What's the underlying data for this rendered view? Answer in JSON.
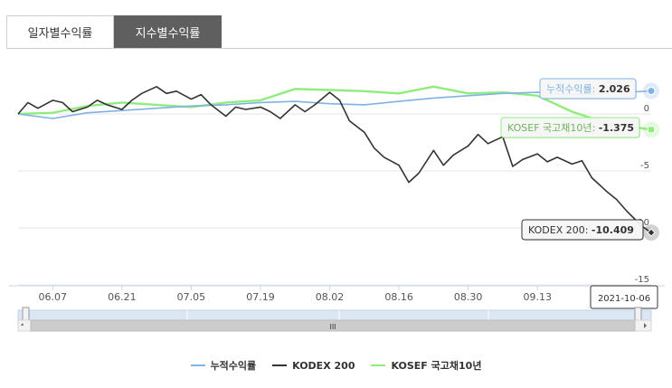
{
  "tabs": [
    {
      "label": "일자별수익률",
      "active": false
    },
    {
      "label": "지수별수익률",
      "active": true
    }
  ],
  "colors": {
    "series_cumulative": "#7fb2e5",
    "series_kodex": "#333333",
    "series_kosef": "#90ed7d",
    "grid": "#e6e6e6",
    "navigator_fill": "#dbe7f5"
  },
  "chart_data": {
    "type": "line",
    "xlabel": "",
    "ylabel": "",
    "ylim": [
      -15,
      0
    ],
    "y_ticks": [
      "0",
      "-5",
      "-10",
      "-15"
    ],
    "x_ticks": [
      "06.07",
      "06.21",
      "07.05",
      "07.19",
      "08.02",
      "08.16",
      "08.30",
      "09.13"
    ],
    "x_range": [
      "2021-05-31",
      "2021-10-06"
    ],
    "series": [
      {
        "name": "누적수익률",
        "x": [
          "2021-05-31",
          "2021-06-07",
          "2021-06-14",
          "2021-06-21",
          "2021-06-28",
          "2021-07-05",
          "2021-07-12",
          "2021-07-19",
          "2021-07-26",
          "2021-08-02",
          "2021-08-09",
          "2021-08-16",
          "2021-08-23",
          "2021-08-30",
          "2021-09-06",
          "2021-09-13",
          "2021-09-20",
          "2021-09-27",
          "2021-10-06"
        ],
        "values": [
          0.0,
          -0.4,
          0.1,
          0.3,
          0.5,
          0.7,
          0.8,
          1.0,
          1.1,
          0.9,
          0.8,
          1.1,
          1.4,
          1.6,
          1.8,
          1.9,
          1.7,
          1.8,
          2.026
        ]
      },
      {
        "name": "KODEX 200",
        "x": [
          "2021-05-31",
          "2021-06-02",
          "2021-06-04",
          "2021-06-07",
          "2021-06-09",
          "2021-06-11",
          "2021-06-14",
          "2021-06-16",
          "2021-06-18",
          "2021-06-21",
          "2021-06-23",
          "2021-06-25",
          "2021-06-28",
          "2021-06-30",
          "2021-07-02",
          "2021-07-05",
          "2021-07-07",
          "2021-07-09",
          "2021-07-12",
          "2021-07-14",
          "2021-07-16",
          "2021-07-19",
          "2021-07-21",
          "2021-07-23",
          "2021-07-26",
          "2021-07-28",
          "2021-07-30",
          "2021-08-02",
          "2021-08-04",
          "2021-08-06",
          "2021-08-09",
          "2021-08-11",
          "2021-08-13",
          "2021-08-16",
          "2021-08-18",
          "2021-08-20",
          "2021-08-23",
          "2021-08-25",
          "2021-08-27",
          "2021-08-30",
          "2021-09-01",
          "2021-09-03",
          "2021-09-06",
          "2021-09-08",
          "2021-09-10",
          "2021-09-13",
          "2021-09-15",
          "2021-09-17",
          "2021-09-20",
          "2021-09-22",
          "2021-09-24",
          "2021-09-27",
          "2021-09-29",
          "2021-10-01",
          "2021-10-04",
          "2021-10-06"
        ],
        "values": [
          0.0,
          1.0,
          0.5,
          1.2,
          1.0,
          0.2,
          0.6,
          1.2,
          0.8,
          0.4,
          1.2,
          1.8,
          2.4,
          1.8,
          2.0,
          1.3,
          1.7,
          0.8,
          -0.2,
          0.6,
          0.4,
          0.6,
          0.2,
          -0.4,
          0.8,
          0.2,
          0.8,
          1.9,
          1.2,
          -0.6,
          -1.6,
          -3.0,
          -3.8,
          -4.5,
          -6.0,
          -5.2,
          -3.2,
          -4.5,
          -3.6,
          -2.8,
          -1.8,
          -2.6,
          -2.0,
          -4.6,
          -4.0,
          -3.5,
          -4.2,
          -3.8,
          -4.4,
          -4.1,
          -5.6,
          -6.8,
          -7.5,
          -8.5,
          -9.8,
          -10.409
        ]
      },
      {
        "name": "KOSEF 국고채10년",
        "x": [
          "2021-05-31",
          "2021-06-07",
          "2021-06-14",
          "2021-06-21",
          "2021-06-28",
          "2021-07-05",
          "2021-07-12",
          "2021-07-19",
          "2021-07-26",
          "2021-08-02",
          "2021-08-09",
          "2021-08-16",
          "2021-08-23",
          "2021-08-30",
          "2021-09-06",
          "2021-09-13",
          "2021-09-20",
          "2021-09-27",
          "2021-10-06"
        ],
        "values": [
          0.0,
          0.1,
          0.7,
          1.0,
          0.8,
          0.6,
          1.0,
          1.2,
          2.2,
          2.1,
          2.0,
          1.8,
          2.4,
          1.8,
          1.9,
          1.6,
          0.2,
          -0.8,
          -1.375
        ]
      }
    ],
    "tooltips": [
      {
        "label": "누적수익률",
        "value": "2.026"
      },
      {
        "label": "KOSEF 국고채10년",
        "value": "-1.375"
      },
      {
        "label": "KODEX 200",
        "value": "-10.409"
      }
    ],
    "crosshair_label": "2021-10-06",
    "navigator": {
      "scroll_label": "III"
    },
    "legend_position": "bottom"
  }
}
